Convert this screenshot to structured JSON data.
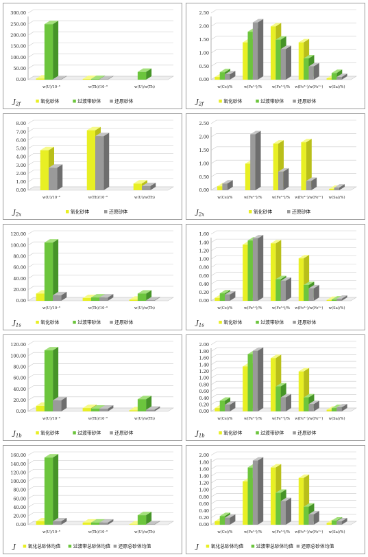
{
  "colors": {
    "oxidized": {
      "front": "#e8ef24",
      "side": "#b9bf1a",
      "top": "#f6fa8a"
    },
    "transition": {
      "front": "#6cc53d",
      "side": "#469428",
      "top": "#a4e07c"
    },
    "reduced": {
      "front": "#9a9a9a",
      "side": "#6e6e6e",
      "top": "#c4c4c4"
    },
    "grid": "#c9c9c9",
    "frame": "#9a9a9a"
  },
  "chart_data": [
    {
      "type": "bar",
      "title": "J2f",
      "categories": [
        "w(U)/10⁻⁶",
        "w(Th)/10⁻⁶",
        "w(U)/w(Th)"
      ],
      "series": [
        {
          "name": "氧化砂体",
          "key": "oxidized",
          "values": [
            5,
            3,
            0.5
          ]
        },
        {
          "name": "过渡带砂体",
          "key": "transition",
          "values": [
            250,
            3,
            35
          ]
        },
        {
          "name": "还原砂体",
          "key": "reduced",
          "values": [
            2,
            2,
            0.5
          ]
        }
      ],
      "ylim": [
        0,
        300
      ],
      "yticks": [
        "0.00",
        "50.00",
        "100.00",
        "150.00",
        "200.00",
        "250.00",
        "300.00"
      ]
    },
    {
      "type": "bar",
      "title": "J2f",
      "categories": [
        "w(Ce)/%",
        "w(Fe²⁺)/%",
        "w(Fe³⁺)/%",
        "w(Fe³⁺)/w(Fe²⁺)",
        "w(Sa)/%)"
      ],
      "series": [
        {
          "name": "氧化砂体",
          "key": "oxidized",
          "values": [
            0.1,
            1.4,
            2.0,
            1.4,
            0.05
          ]
        },
        {
          "name": "过渡带砂体",
          "key": "transition",
          "values": [
            0.28,
            1.8,
            1.5,
            0.8,
            0.25
          ]
        },
        {
          "name": "还原砂体",
          "key": "reduced",
          "values": [
            0.2,
            2.15,
            1.15,
            0.5,
            0.1
          ]
        }
      ],
      "ylim": [
        0,
        2.5
      ],
      "yticks": [
        "0.00",
        "0.50",
        "1.00",
        "1.50",
        "2.00",
        "2.50"
      ]
    },
    {
      "type": "bar",
      "title": "J2x",
      "categories": [
        "w(U)/10⁻⁶",
        "w(Th)/10⁻⁶",
        "w(U)/w(Th)"
      ],
      "series": [
        {
          "name": "氧化砂体",
          "key": "oxidized",
          "values": [
            4.8,
            7.2,
            0.8
          ]
        },
        {
          "name": "还原砂体",
          "key": "reduced",
          "values": [
            2.7,
            6.5,
            0.5
          ]
        }
      ],
      "ylim": [
        0,
        8
      ],
      "yticks": [
        "0.00",
        "1.00",
        "2.00",
        "3.00",
        "4.00",
        "5.00",
        "6.00",
        "7.00",
        "8.00"
      ]
    },
    {
      "type": "bar",
      "title": "J2x",
      "categories": [
        "w(Ce)/%",
        "w(Fe²⁺)/%",
        "w(Fe³⁺)/%",
        "w(Fe³⁺)/w(Fe²⁺)",
        "w(Sa)/%)"
      ],
      "series": [
        {
          "name": "氧化砂体",
          "key": "oxidized",
          "values": [
            0.15,
            1.0,
            1.75,
            1.8,
            0.05
          ]
        },
        {
          "name": "还原砂体",
          "key": "reduced",
          "values": [
            0.25,
            2.1,
            0.7,
            0.35,
            0.1
          ]
        }
      ],
      "ylim": [
        0,
        2.5
      ],
      "yticks": [
        "0.00",
        "0.50",
        "1.00",
        "1.50",
        "2.00",
        "2.50"
      ]
    },
    {
      "type": "bar",
      "title": "J1s",
      "categories": [
        "w(U)/10⁻⁶",
        "w(Th)/10⁻⁶",
        "w(U)/w(Th)"
      ],
      "series": [
        {
          "name": "氧化砂体",
          "key": "oxidized",
          "values": [
            13,
            5,
            2
          ]
        },
        {
          "name": "过渡带砂体",
          "key": "transition",
          "values": [
            105,
            6,
            13
          ]
        },
        {
          "name": "还原砂体",
          "key": "reduced",
          "values": [
            10,
            6,
            1
          ]
        }
      ],
      "ylim": [
        0,
        120
      ],
      "yticks": [
        "0.00",
        "20.00",
        "40.00",
        "60.00",
        "80.00",
        "100.00",
        "120.00"
      ]
    },
    {
      "type": "bar",
      "title": "J1s",
      "categories": [
        "w(Ce)/%",
        "w(Fe²⁺)/%",
        "w(Fe³⁺)/%",
        "w(Fe³⁺)/w(Fe²⁺)",
        "w(Sa)/%)"
      ],
      "series": [
        {
          "name": "氧化砂体",
          "key": "oxidized",
          "values": [
            0.07,
            1.35,
            1.38,
            1.02,
            0.02
          ]
        },
        {
          "name": "过渡带砂体",
          "key": "transition",
          "values": [
            0.18,
            1.45,
            0.52,
            0.38,
            0.03
          ]
        },
        {
          "name": "还原砂体",
          "key": "reduced",
          "values": [
            0.15,
            1.5,
            0.48,
            0.3,
            0.05
          ]
        }
      ],
      "ylim": [
        0,
        1.6
      ],
      "yticks": [
        "0.00",
        "0.20",
        "0.40",
        "0.60",
        "0.80",
        "1.00",
        "1.20",
        "1.40",
        "1.60"
      ]
    },
    {
      "type": "bar",
      "title": "J1b",
      "categories": [
        "w(U)/10⁻⁶",
        "w(Th)/10⁻⁶",
        "w(U)/w(Th)"
      ],
      "series": [
        {
          "name": "氧化砂体",
          "key": "oxidized",
          "values": [
            10,
            6,
            2
          ]
        },
        {
          "name": "过渡带砂体",
          "key": "transition",
          "values": [
            110,
            5,
            22
          ]
        },
        {
          "name": "还原砂体",
          "key": "reduced",
          "values": [
            20,
            5,
            3
          ]
        }
      ],
      "ylim": [
        0,
        120
      ],
      "yticks": [
        "0.00",
        "20.00",
        "40.00",
        "60.00",
        "80.00",
        "100.00",
        "120.00"
      ]
    },
    {
      "type": "bar",
      "title": "J1b",
      "categories": [
        "w(Ce)/%",
        "w(Fe²⁺)/%",
        "w(Fe³⁺)/%",
        "w(Fe³⁺)/w(Fe²⁺)",
        "w(Sa)/%)"
      ],
      "series": [
        {
          "name": "氧化砂体",
          "key": "oxidized",
          "values": [
            0.1,
            1.35,
            1.6,
            1.2,
            0.05
          ]
        },
        {
          "name": "过渡带砂体",
          "key": "transition",
          "values": [
            0.32,
            1.72,
            0.75,
            0.42,
            0.1
          ]
        },
        {
          "name": "还原砂体",
          "key": "reduced",
          "values": [
            0.2,
            1.82,
            0.42,
            0.22,
            0.12
          ]
        }
      ],
      "ylim": [
        0,
        2.0
      ],
      "yticks": [
        "0.00",
        "0.20",
        "0.40",
        "0.60",
        "0.80",
        "1.00",
        "1.20",
        "1.40",
        "1.60",
        "1.80",
        "2.00"
      ]
    },
    {
      "type": "bar",
      "title": "J",
      "categories": [
        "w(U)/10⁻⁶",
        "w(Th)/10⁻⁶",
        "w(U)/w(Th)"
      ],
      "series": [
        {
          "name": "氧化总砂体均值",
          "key": "oxidized",
          "values": [
            8,
            5,
            1
          ]
        },
        {
          "name": "过渡带总砂体均值",
          "key": "transition",
          "values": [
            155,
            5,
            22
          ]
        },
        {
          "name": "还原总砂体均值",
          "key": "reduced",
          "values": [
            8,
            5,
            1
          ]
        }
      ],
      "ylim": [
        0,
        160
      ],
      "yticks": [
        "0.00",
        "20.00",
        "40.00",
        "60.00",
        "80.00",
        "100.00",
        "120.00",
        "140.00",
        "160.00"
      ]
    },
    {
      "type": "bar",
      "title": "J",
      "categories": [
        "w(Ce)/%",
        "w(Fe²⁺)/%",
        "w(Fe³⁺)/%",
        "w(Fe³⁺)/w(Fe²⁺)",
        "w(Sa)/%)"
      ],
      "series": [
        {
          "name": "氧化总砂体均值",
          "key": "oxidized",
          "values": [
            0.1,
            1.25,
            1.65,
            1.35,
            0.05
          ]
        },
        {
          "name": "过渡带总砂体均值",
          "key": "transition",
          "values": [
            0.25,
            1.65,
            0.92,
            0.52,
            0.12
          ]
        },
        {
          "name": "还原总砂体均值",
          "key": "reduced",
          "values": [
            0.2,
            1.85,
            0.68,
            0.3,
            0.1
          ]
        }
      ],
      "ylim": [
        0,
        2.0
      ],
      "yticks": [
        "0.00",
        "0.20",
        "0.40",
        "0.60",
        "0.80",
        "1.00",
        "1.20",
        "1.40",
        "1.60",
        "1.80",
        "2.00"
      ]
    }
  ]
}
